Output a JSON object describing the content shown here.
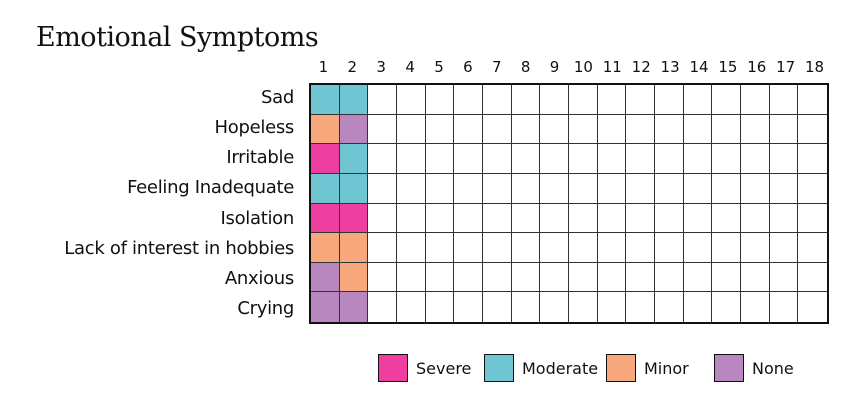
{
  "title": "Emotional Symptoms",
  "colors": {
    "Severe": "#ee3fa1",
    "Moderate": "#6fc6d2",
    "Minor": "#f7a97d",
    "None": "#b987c0"
  },
  "columns": [
    "1",
    "2",
    "3",
    "4",
    "5",
    "6",
    "7",
    "8",
    "9",
    "10",
    "11",
    "12",
    "13",
    "14",
    "15",
    "16",
    "17",
    "18"
  ],
  "rows": [
    {
      "label": "Sad",
      "ratings": [
        "Moderate",
        "Moderate"
      ]
    },
    {
      "label": "Hopeless",
      "ratings": [
        "Minor",
        "None"
      ]
    },
    {
      "label": "Irritable",
      "ratings": [
        "Severe",
        "Moderate"
      ]
    },
    {
      "label": "Feeling Inadequate",
      "ratings": [
        "Moderate",
        "Moderate"
      ]
    },
    {
      "label": "Isolation",
      "ratings": [
        "Severe",
        "Severe"
      ]
    },
    {
      "label": "Lack of interest in hobbies",
      "ratings": [
        "Minor",
        "Minor"
      ]
    },
    {
      "label": "Anxious",
      "ratings": [
        "None",
        "Minor"
      ]
    },
    {
      "label": "Crying",
      "ratings": [
        "None",
        "None"
      ]
    }
  ],
  "legend": [
    {
      "key": "Severe",
      "label": "Severe"
    },
    {
      "key": "Moderate",
      "label": "Moderate"
    },
    {
      "key": "Minor",
      "label": "Minor"
    },
    {
      "key": "None",
      "label": "None"
    }
  ]
}
